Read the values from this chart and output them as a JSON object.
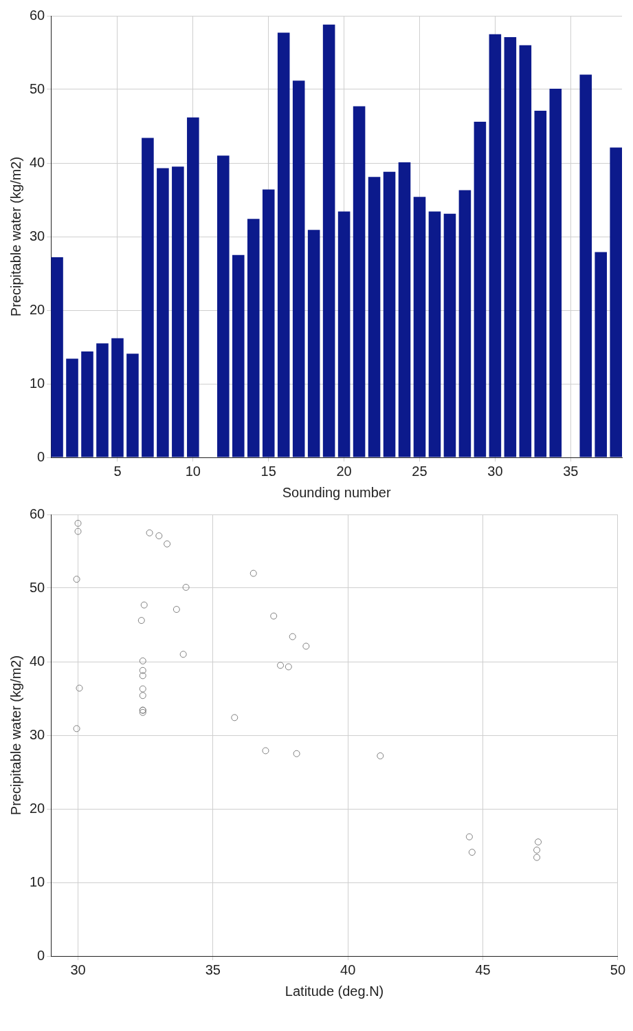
{
  "chart_data": [
    {
      "type": "bar",
      "xlabel": "Sounding number",
      "ylabel": "Precipitable water (kg/m2)",
      "x": [
        1,
        2,
        3,
        4,
        5,
        6,
        7,
        8,
        9,
        10,
        11,
        12,
        13,
        14,
        15,
        16,
        17,
        18,
        19,
        20,
        21,
        22,
        23,
        24,
        25,
        26,
        27,
        28,
        29,
        30,
        31,
        32,
        33,
        34,
        35,
        36,
        37,
        38
      ],
      "values": [
        27.2,
        13.4,
        14.4,
        15.5,
        16.2,
        14.1,
        43.4,
        39.3,
        39.5,
        46.2,
        null,
        41.0,
        27.5,
        32.4,
        36.4,
        57.7,
        51.2,
        30.9,
        58.8,
        33.4,
        47.7,
        38.1,
        38.8,
        40.1,
        35.4,
        33.4,
        33.1,
        36.3,
        45.6,
        57.5,
        57.1,
        56.0,
        47.1,
        50.1,
        null,
        52.0,
        27.9,
        42.1
      ],
      "color": "#0c1a8c",
      "xlim": [
        0.6,
        38.4
      ],
      "ylim": [
        0,
        60
      ],
      "xticks": [
        5,
        10,
        15,
        20,
        25,
        30,
        35
      ],
      "yticks": [
        0,
        10,
        20,
        30,
        40,
        50,
        60
      ],
      "grid": true
    },
    {
      "type": "scatter",
      "xlabel": "Latitude (deg.N)",
      "ylabel": "Precipitable water (kg/m2)",
      "x": [
        30.0,
        30.0,
        29.95,
        30.05,
        29.95,
        32.65,
        33.0,
        33.3,
        32.45,
        32.35,
        33.65,
        34.0,
        33.9,
        32.4,
        32.4,
        32.4,
        32.4,
        32.4,
        32.4,
        32.4,
        32.4,
        36.5,
        37.25,
        37.95,
        38.45,
        37.5,
        37.8,
        35.8,
        36.95,
        38.1,
        41.2,
        44.5,
        44.6,
        47.05,
        47.0,
        47.0
      ],
      "values": [
        58.8,
        57.7,
        51.2,
        36.4,
        30.9,
        57.5,
        57.1,
        56.0,
        47.7,
        45.6,
        47.1,
        50.1,
        41.0,
        40.1,
        38.8,
        38.1,
        36.3,
        35.4,
        33.4,
        33.4,
        33.1,
        52.0,
        46.2,
        43.4,
        42.1,
        39.5,
        39.3,
        32.4,
        27.9,
        27.5,
        27.2,
        16.2,
        14.1,
        15.5,
        14.4,
        13.4
      ],
      "color": "#808080",
      "marker": "circle",
      "xlim": [
        29,
        50
      ],
      "ylim": [
        0,
        60
      ],
      "xticks": [
        30,
        35,
        40,
        45,
        50
      ],
      "yticks": [
        0,
        10,
        20,
        30,
        40,
        50,
        60
      ],
      "grid": true
    }
  ]
}
